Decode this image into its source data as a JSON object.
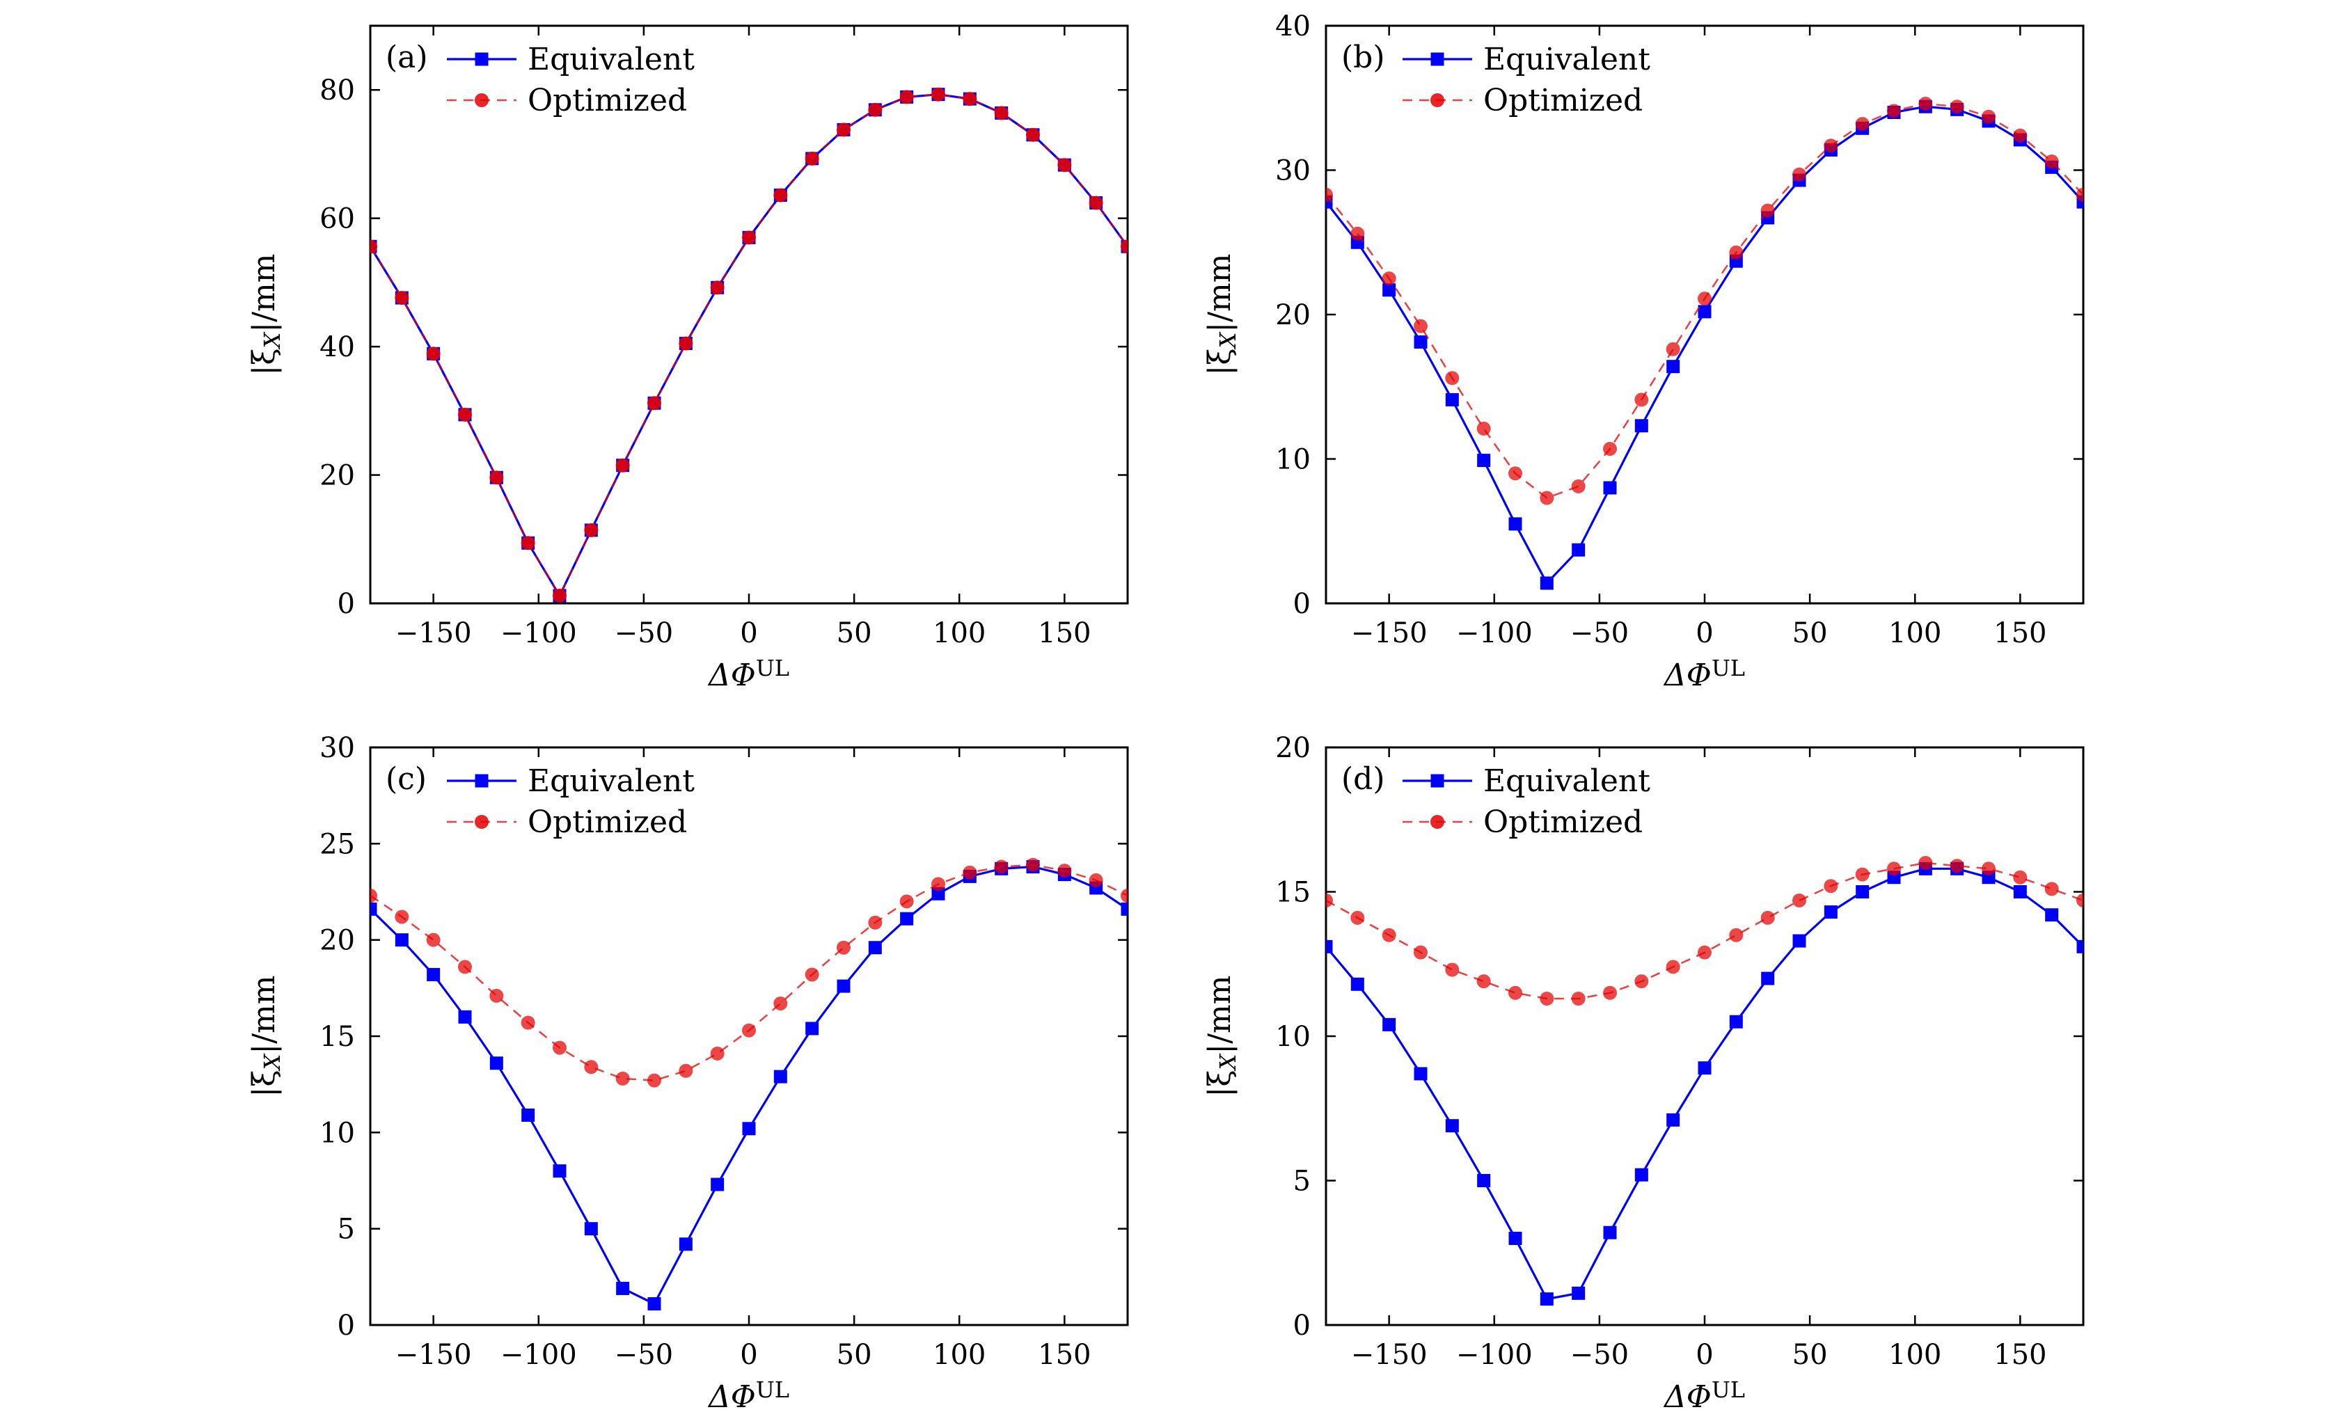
{
  "figure": {
    "title": ""
  },
  "chart_data": [
    {
      "type": "line",
      "panel_label": "(a)",
      "xlabel": "ΔΦ",
      "xlabel_sup": "UL",
      "ylabel": "|ξ",
      "ylabel_sub": "X",
      "ylabel_unit": "|/mm",
      "xlim": [
        -180,
        180
      ],
      "ylim": [
        0,
        90
      ],
      "xticks": [
        -150,
        -100,
        -50,
        0,
        50,
        100,
        150
      ],
      "xtick_labels": [
        "−150",
        "−100",
        "−50",
        "0",
        "50",
        "100",
        "150"
      ],
      "yticks": [
        0,
        20,
        40,
        60,
        80
      ],
      "ytick_labels": [
        "0",
        "20",
        "40",
        "60",
        "80"
      ],
      "legend_position": "top-left",
      "x": [
        -180,
        -165,
        -150,
        -135,
        -120,
        -105,
        -90,
        -75,
        -60,
        -45,
        -30,
        -15,
        0,
        15,
        30,
        45,
        60,
        75,
        90,
        105,
        120,
        135,
        150,
        165,
        180
      ],
      "series": [
        {
          "name": "Equivalent",
          "color": "#0000ff",
          "marker": "square",
          "line": "solid",
          "values": [
            55.6,
            47.6,
            38.9,
            29.4,
            19.6,
            9.4,
            1.2,
            11.4,
            21.5,
            31.2,
            40.5,
            49.2,
            57.0,
            63.6,
            69.3,
            73.8,
            76.9,
            78.9,
            79.3,
            78.6,
            76.4,
            73.0,
            68.3,
            62.4,
            55.6
          ]
        },
        {
          "name": "Optimized",
          "color": "#e50000",
          "marker": "circle",
          "line": "dashed",
          "values": [
            55.6,
            47.6,
            38.9,
            29.4,
            19.6,
            9.4,
            1.2,
            11.4,
            21.5,
            31.2,
            40.5,
            49.2,
            57.0,
            63.6,
            69.3,
            73.8,
            76.9,
            78.9,
            79.3,
            78.6,
            76.4,
            73.0,
            68.3,
            62.4,
            55.6
          ]
        }
      ]
    },
    {
      "type": "line",
      "panel_label": "(b)",
      "xlabel": "ΔΦ",
      "xlabel_sup": "UL",
      "ylabel": "|ξ",
      "ylabel_sub": "X",
      "ylabel_unit": "|/mm",
      "xlim": [
        -180,
        180
      ],
      "ylim": [
        0,
        40
      ],
      "xticks": [
        -150,
        -100,
        -50,
        0,
        50,
        100,
        150
      ],
      "xtick_labels": [
        "−150",
        "−100",
        "−50",
        "0",
        "50",
        "100",
        "150"
      ],
      "yticks": [
        0,
        10,
        20,
        30,
        40
      ],
      "ytick_labels": [
        "0",
        "10",
        "20",
        "30",
        "40"
      ],
      "legend_position": "top-left",
      "x": [
        -180,
        -165,
        -150,
        -135,
        -120,
        -105,
        -90,
        -75,
        -60,
        -45,
        -30,
        -15,
        0,
        15,
        30,
        45,
        60,
        75,
        90,
        105,
        120,
        135,
        150,
        165,
        180
      ],
      "series": [
        {
          "name": "Equivalent",
          "color": "#0000ff",
          "marker": "square",
          "line": "solid",
          "values": [
            27.8,
            25.0,
            21.7,
            18.1,
            14.1,
            9.9,
            5.5,
            1.4,
            3.7,
            8.0,
            12.3,
            16.4,
            20.2,
            23.7,
            26.7,
            29.3,
            31.4,
            32.9,
            34.0,
            34.4,
            34.2,
            33.4,
            32.1,
            30.2,
            27.8
          ]
        },
        {
          "name": "Optimized",
          "color": "#e50000",
          "marker": "circle",
          "line": "dashed",
          "values": [
            28.3,
            25.6,
            22.5,
            19.2,
            15.6,
            12.1,
            9.0,
            7.3,
            8.1,
            10.7,
            14.1,
            17.6,
            21.1,
            24.3,
            27.2,
            29.7,
            31.7,
            33.2,
            34.1,
            34.6,
            34.4,
            33.7,
            32.4,
            30.6,
            28.3
          ]
        }
      ]
    },
    {
      "type": "line",
      "panel_label": "(c)",
      "xlabel": "ΔΦ",
      "xlabel_sup": "UL",
      "ylabel": "|ξ",
      "ylabel_sub": "X",
      "ylabel_unit": "|/mm",
      "xlim": [
        -180,
        180
      ],
      "ylim": [
        0,
        30
      ],
      "xticks": [
        -150,
        -100,
        -50,
        0,
        50,
        100,
        150
      ],
      "xtick_labels": [
        "−150",
        "−100",
        "−50",
        "0",
        "50",
        "100",
        "150"
      ],
      "yticks": [
        0,
        5,
        10,
        15,
        20,
        25,
        30
      ],
      "ytick_labels": [
        "0",
        "5",
        "10",
        "15",
        "20",
        "25",
        "30"
      ],
      "legend_position": "top-left",
      "x": [
        -180,
        -165,
        -150,
        -135,
        -120,
        -105,
        -90,
        -75,
        -60,
        -45,
        -30,
        -15,
        0,
        15,
        30,
        45,
        60,
        75,
        90,
        105,
        120,
        135,
        150,
        165,
        180
      ],
      "series": [
        {
          "name": "Equivalent",
          "color": "#0000ff",
          "marker": "square",
          "line": "solid",
          "values": [
            21.6,
            20.0,
            18.2,
            16.0,
            13.6,
            10.9,
            8.0,
            5.0,
            1.9,
            1.1,
            4.2,
            7.3,
            10.2,
            12.9,
            15.4,
            17.6,
            19.6,
            21.1,
            22.4,
            23.3,
            23.7,
            23.8,
            23.4,
            22.7,
            21.6
          ]
        },
        {
          "name": "Optimized",
          "color": "#e50000",
          "marker": "circle",
          "line": "dashed",
          "values": [
            22.3,
            21.2,
            20.0,
            18.6,
            17.1,
            15.7,
            14.4,
            13.4,
            12.8,
            12.7,
            13.2,
            14.1,
            15.3,
            16.7,
            18.2,
            19.6,
            20.9,
            22.0,
            22.9,
            23.5,
            23.8,
            23.9,
            23.6,
            23.1,
            22.3
          ]
        }
      ]
    },
    {
      "type": "line",
      "panel_label": "(d)",
      "xlabel": "ΔΦ",
      "xlabel_sup": "UL",
      "ylabel": "|ξ",
      "ylabel_sub": "X",
      "ylabel_unit": "|/mm",
      "xlim": [
        -180,
        180
      ],
      "ylim": [
        0,
        20
      ],
      "xticks": [
        -150,
        -100,
        -50,
        0,
        50,
        100,
        150
      ],
      "xtick_labels": [
        "−150",
        "−100",
        "−50",
        "0",
        "50",
        "100",
        "150"
      ],
      "yticks": [
        0,
        5,
        10,
        15,
        20
      ],
      "ytick_labels": [
        "0",
        "5",
        "10",
        "15",
        "20"
      ],
      "legend_position": "top-left",
      "x": [
        -180,
        -165,
        -150,
        -135,
        -120,
        -105,
        -90,
        -75,
        -60,
        -45,
        -30,
        -15,
        0,
        15,
        30,
        45,
        60,
        75,
        90,
        105,
        120,
        135,
        150,
        165,
        180
      ],
      "series": [
        {
          "name": "Equivalent",
          "color": "#0000ff",
          "marker": "square",
          "line": "solid",
          "values": [
            13.1,
            11.8,
            10.4,
            8.7,
            6.9,
            5.0,
            3.0,
            0.9,
            1.1,
            3.2,
            5.2,
            7.1,
            8.9,
            10.5,
            12.0,
            13.3,
            14.3,
            15.0,
            15.5,
            15.8,
            15.8,
            15.5,
            15.0,
            14.2,
            13.1
          ]
        },
        {
          "name": "Optimized",
          "color": "#e50000",
          "marker": "circle",
          "line": "dashed",
          "values": [
            14.7,
            14.1,
            13.5,
            12.9,
            12.3,
            11.9,
            11.5,
            11.3,
            11.3,
            11.5,
            11.9,
            12.4,
            12.9,
            13.5,
            14.1,
            14.7,
            15.2,
            15.6,
            15.8,
            16.0,
            15.9,
            15.8,
            15.5,
            15.1,
            14.7
          ]
        }
      ]
    }
  ]
}
